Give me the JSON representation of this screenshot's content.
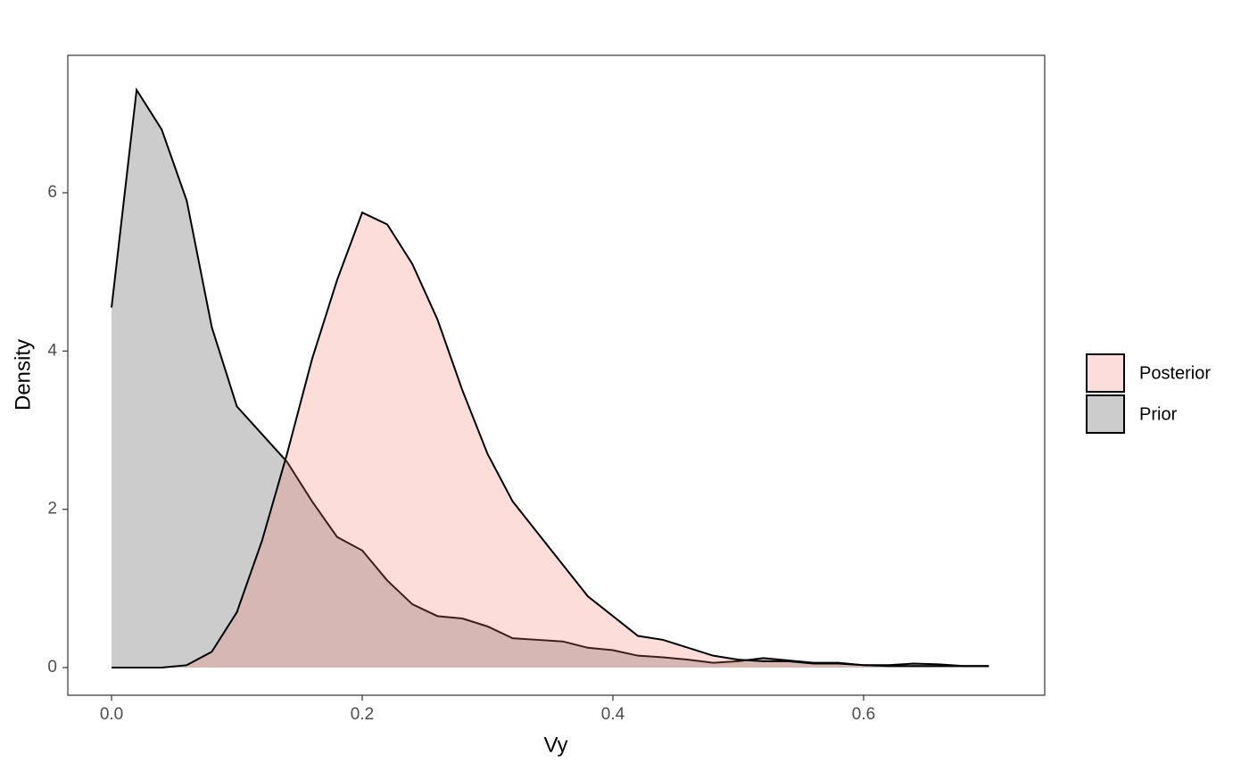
{
  "chart_data": {
    "type": "density",
    "x_label": "Vy",
    "y_label": "Density",
    "x": [
      0,
      0.02,
      0.04,
      0.06,
      0.08,
      0.1,
      0.12,
      0.14,
      0.16,
      0.18,
      0.2,
      0.22,
      0.24,
      0.26,
      0.28,
      0.3,
      0.32,
      0.34,
      0.36,
      0.38,
      0.4,
      0.42,
      0.44,
      0.46,
      0.48,
      0.5,
      0.52,
      0.54,
      0.56,
      0.58,
      0.6,
      0.62,
      0.64,
      0.66,
      0.68,
      0.7
    ],
    "series": [
      {
        "name": "Posterior",
        "color": "#F8766D",
        "values": [
          0,
          0,
          0,
          0.03,
          0.2,
          0.7,
          1.6,
          2.7,
          3.9,
          4.9,
          5.75,
          5.6,
          5.1,
          4.4,
          3.5,
          2.7,
          2.1,
          1.7,
          1.3,
          0.9,
          0.65,
          0.4,
          0.35,
          0.25,
          0.15,
          0.1,
          0.08,
          0.08,
          0.05,
          0.05,
          0.03,
          0.02,
          0.02,
          0.02,
          0.02,
          0.02
        ]
      },
      {
        "name": "Prior",
        "color": "#999999",
        "values": [
          4.55,
          7.3,
          6.8,
          5.9,
          4.3,
          3.3,
          2.95,
          2.6,
          2.1,
          1.65,
          1.48,
          1.1,
          0.8,
          0.65,
          0.62,
          0.52,
          0.37,
          0.35,
          0.33,
          0.25,
          0.22,
          0.15,
          0.13,
          0.1,
          0.06,
          0.08,
          0.12,
          0.09,
          0.06,
          0.06,
          0.03,
          0.03,
          0.05,
          0.04,
          0.02,
          0.02
        ]
      }
    ],
    "xlim": [
      -0.0349,
      0.7445
    ],
    "ylim": [
      -0.35,
      7.737
    ],
    "xticks": [
      {
        "value": 0,
        "label": "0.0"
      },
      0.2,
      0.4,
      0.6
    ],
    "yticks": [
      0,
      2,
      4,
      6
    ],
    "grid": false,
    "legend": "right"
  }
}
